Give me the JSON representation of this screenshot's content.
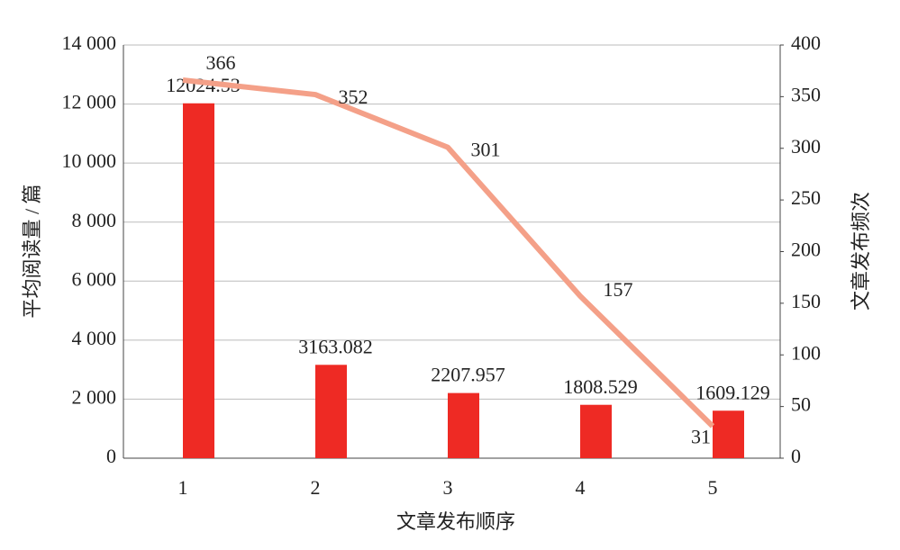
{
  "chart_data": {
    "type": "bar",
    "x_label": "文章发布顺序",
    "y_label": "平均阅读量 / 篇",
    "y2_label": "文章发布频次",
    "categories": [
      "1",
      "2",
      "3",
      "4",
      "5"
    ],
    "series": [
      {
        "type": "bar",
        "color": "#ee2a24",
        "values": [
          12024.53,
          3163.082,
          2207.957,
          1808.529,
          1609.129
        ]
      },
      {
        "type": "line",
        "axis": "y2",
        "color": "#f4a088",
        "values": [
          366,
          352,
          301,
          157,
          31
        ]
      }
    ],
    "ylim": [
      0,
      14000
    ],
    "yticks": [
      0,
      {
        "value": 2000,
        "label": "2 000"
      },
      {
        "value": 4000,
        "label": "4 000"
      },
      {
        "value": 6000,
        "label": "6 000"
      },
      {
        "value": 8000,
        "label": "8 000"
      },
      {
        "value": 10000,
        "label": "10 000"
      },
      {
        "value": 12000,
        "label": "12 000"
      },
      {
        "value": 14000,
        "label": "14 000"
      }
    ],
    "y2lim": [
      0,
      400
    ],
    "y2ticks": [
      0,
      50,
      100,
      150,
      200,
      250,
      300,
      350,
      400
    ],
    "grid": true
  }
}
